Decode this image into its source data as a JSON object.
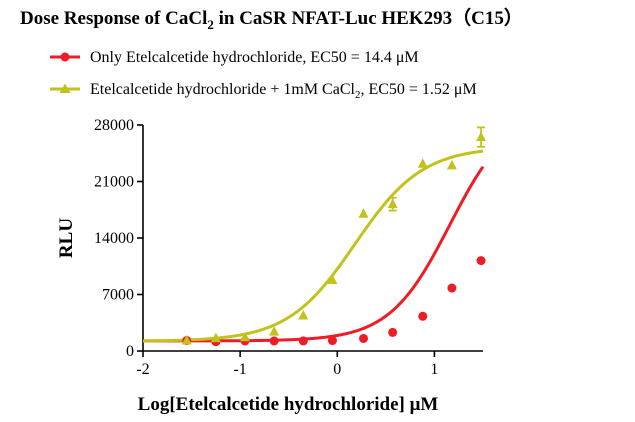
{
  "chart_data": {
    "type": "scatter",
    "title_parts": {
      "pre": "Dose Response of CaCl",
      "sub": "2",
      "post": " in CaSR NFAT-Luc HEK293（C15）"
    },
    "xlabel": "Log[Etelcalcetide hydrochloride] μM",
    "ylabel": "RLU",
    "xlim": [
      -2,
      1.5
    ],
    "ylim": [
      0,
      28000
    ],
    "xticks": [
      -2,
      -1,
      0,
      1
    ],
    "yticks": [
      0,
      7000,
      14000,
      21000,
      28000
    ],
    "legend_position": "top-left",
    "series": [
      {
        "name": "Only Etelcalcetide hydrochloride, EC50 = 14.4 μM",
        "legend_parts": {
          "pre": "Only Etelcalcetide hydrochloride, EC50 = 14.4 μM",
          "sub": "",
          "post": ""
        },
        "color": "#ee1c24",
        "marker": "circle",
        "points": [
          {
            "x": -1.55,
            "y": 1300
          },
          {
            "x": -1.25,
            "y": 1150
          },
          {
            "x": -0.95,
            "y": 1250
          },
          {
            "x": -0.65,
            "y": 1250
          },
          {
            "x": -0.35,
            "y": 1250
          },
          {
            "x": -0.05,
            "y": 1300
          },
          {
            "x": 0.27,
            "y": 1550
          },
          {
            "x": 0.57,
            "y": 2300
          },
          {
            "x": 0.88,
            "y": 4300
          },
          {
            "x": 1.18,
            "y": 7800
          },
          {
            "x": 1.48,
            "y": 11200
          }
        ],
        "fit": {
          "bottom": 1250,
          "top": 30000,
          "log_ec50": 1.158,
          "hill": 1.4
        }
      },
      {
        "name": "Etelcalcetide hydrochloride + 1mM CaCl2, EC50 = 1.52 μM",
        "legend_parts": {
          "pre": "Etelcalcetide hydrochloride + 1mM CaCl",
          "sub": "2",
          "post": ", EC50 = 1.52 μM"
        },
        "color": "#c2c21c",
        "marker": "triangle",
        "points": [
          {
            "x": -1.55,
            "y": 1300
          },
          {
            "x": -1.25,
            "y": 1600
          },
          {
            "x": -0.95,
            "y": 1700
          },
          {
            "x": -0.65,
            "y": 2400
          },
          {
            "x": -0.35,
            "y": 4400
          },
          {
            "x": -0.05,
            "y": 8800
          },
          {
            "x": 0.27,
            "y": 17000
          },
          {
            "x": 0.57,
            "y": 18200
          },
          {
            "x": 0.88,
            "y": 23200
          },
          {
            "x": 1.18,
            "y": 23000
          },
          {
            "x": 1.48,
            "y": 26500
          }
        ],
        "error_bars": [
          {
            "x": 0.57,
            "low": 17400,
            "high": 19000
          },
          {
            "x": 1.48,
            "low": 25300,
            "high": 27700
          }
        ],
        "fit": {
          "bottom": 1200,
          "top": 25300,
          "log_ec50": 0.182,
          "hill": 1.25
        }
      }
    ]
  }
}
